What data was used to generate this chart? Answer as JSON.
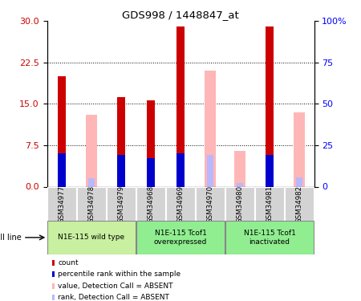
{
  "title": "GDS998 / 1448847_at",
  "samples": [
    "GSM34977",
    "GSM34978",
    "GSM34979",
    "GSM34968",
    "GSM34969",
    "GSM34970",
    "GSM34980",
    "GSM34981",
    "GSM34982"
  ],
  "red_count": [
    20.0,
    null,
    16.2,
    15.6,
    29.0,
    null,
    null,
    29.0,
    null
  ],
  "blue_pct": [
    20.0,
    null,
    19.0,
    17.0,
    20.0,
    null,
    null,
    19.0,
    null
  ],
  "pink_absent": [
    null,
    13.0,
    null,
    null,
    null,
    21.0,
    6.5,
    null,
    13.5
  ],
  "lightblue_rank": [
    null,
    5.0,
    null,
    null,
    null,
    19.0,
    2.0,
    null,
    5.5
  ],
  "left_ylim": [
    0,
    30
  ],
  "left_yticks": [
    0,
    7.5,
    15,
    22.5,
    30
  ],
  "right_ylim": [
    0,
    100
  ],
  "right_yticks": [
    0,
    25,
    50,
    75,
    100
  ],
  "groups": [
    {
      "label": "N1E-115 wild type",
      "start": 0,
      "end": 3,
      "color": "#c8f0a0"
    },
    {
      "label": "N1E-115 Tcof1\noverexpressed",
      "start": 3,
      "end": 6,
      "color": "#90ee90"
    },
    {
      "label": "N1E-115 Tcof1\ninactivated",
      "start": 6,
      "end": 9,
      "color": "#90ee90"
    }
  ],
  "red_color": "#cc0000",
  "blue_color": "#0000cc",
  "pink_color": "#ffb6b6",
  "lightblue_color": "#b8b8ff",
  "tick_bg": "#d3d3d3",
  "grid_dotted_at": [
    7.5,
    15,
    22.5
  ]
}
